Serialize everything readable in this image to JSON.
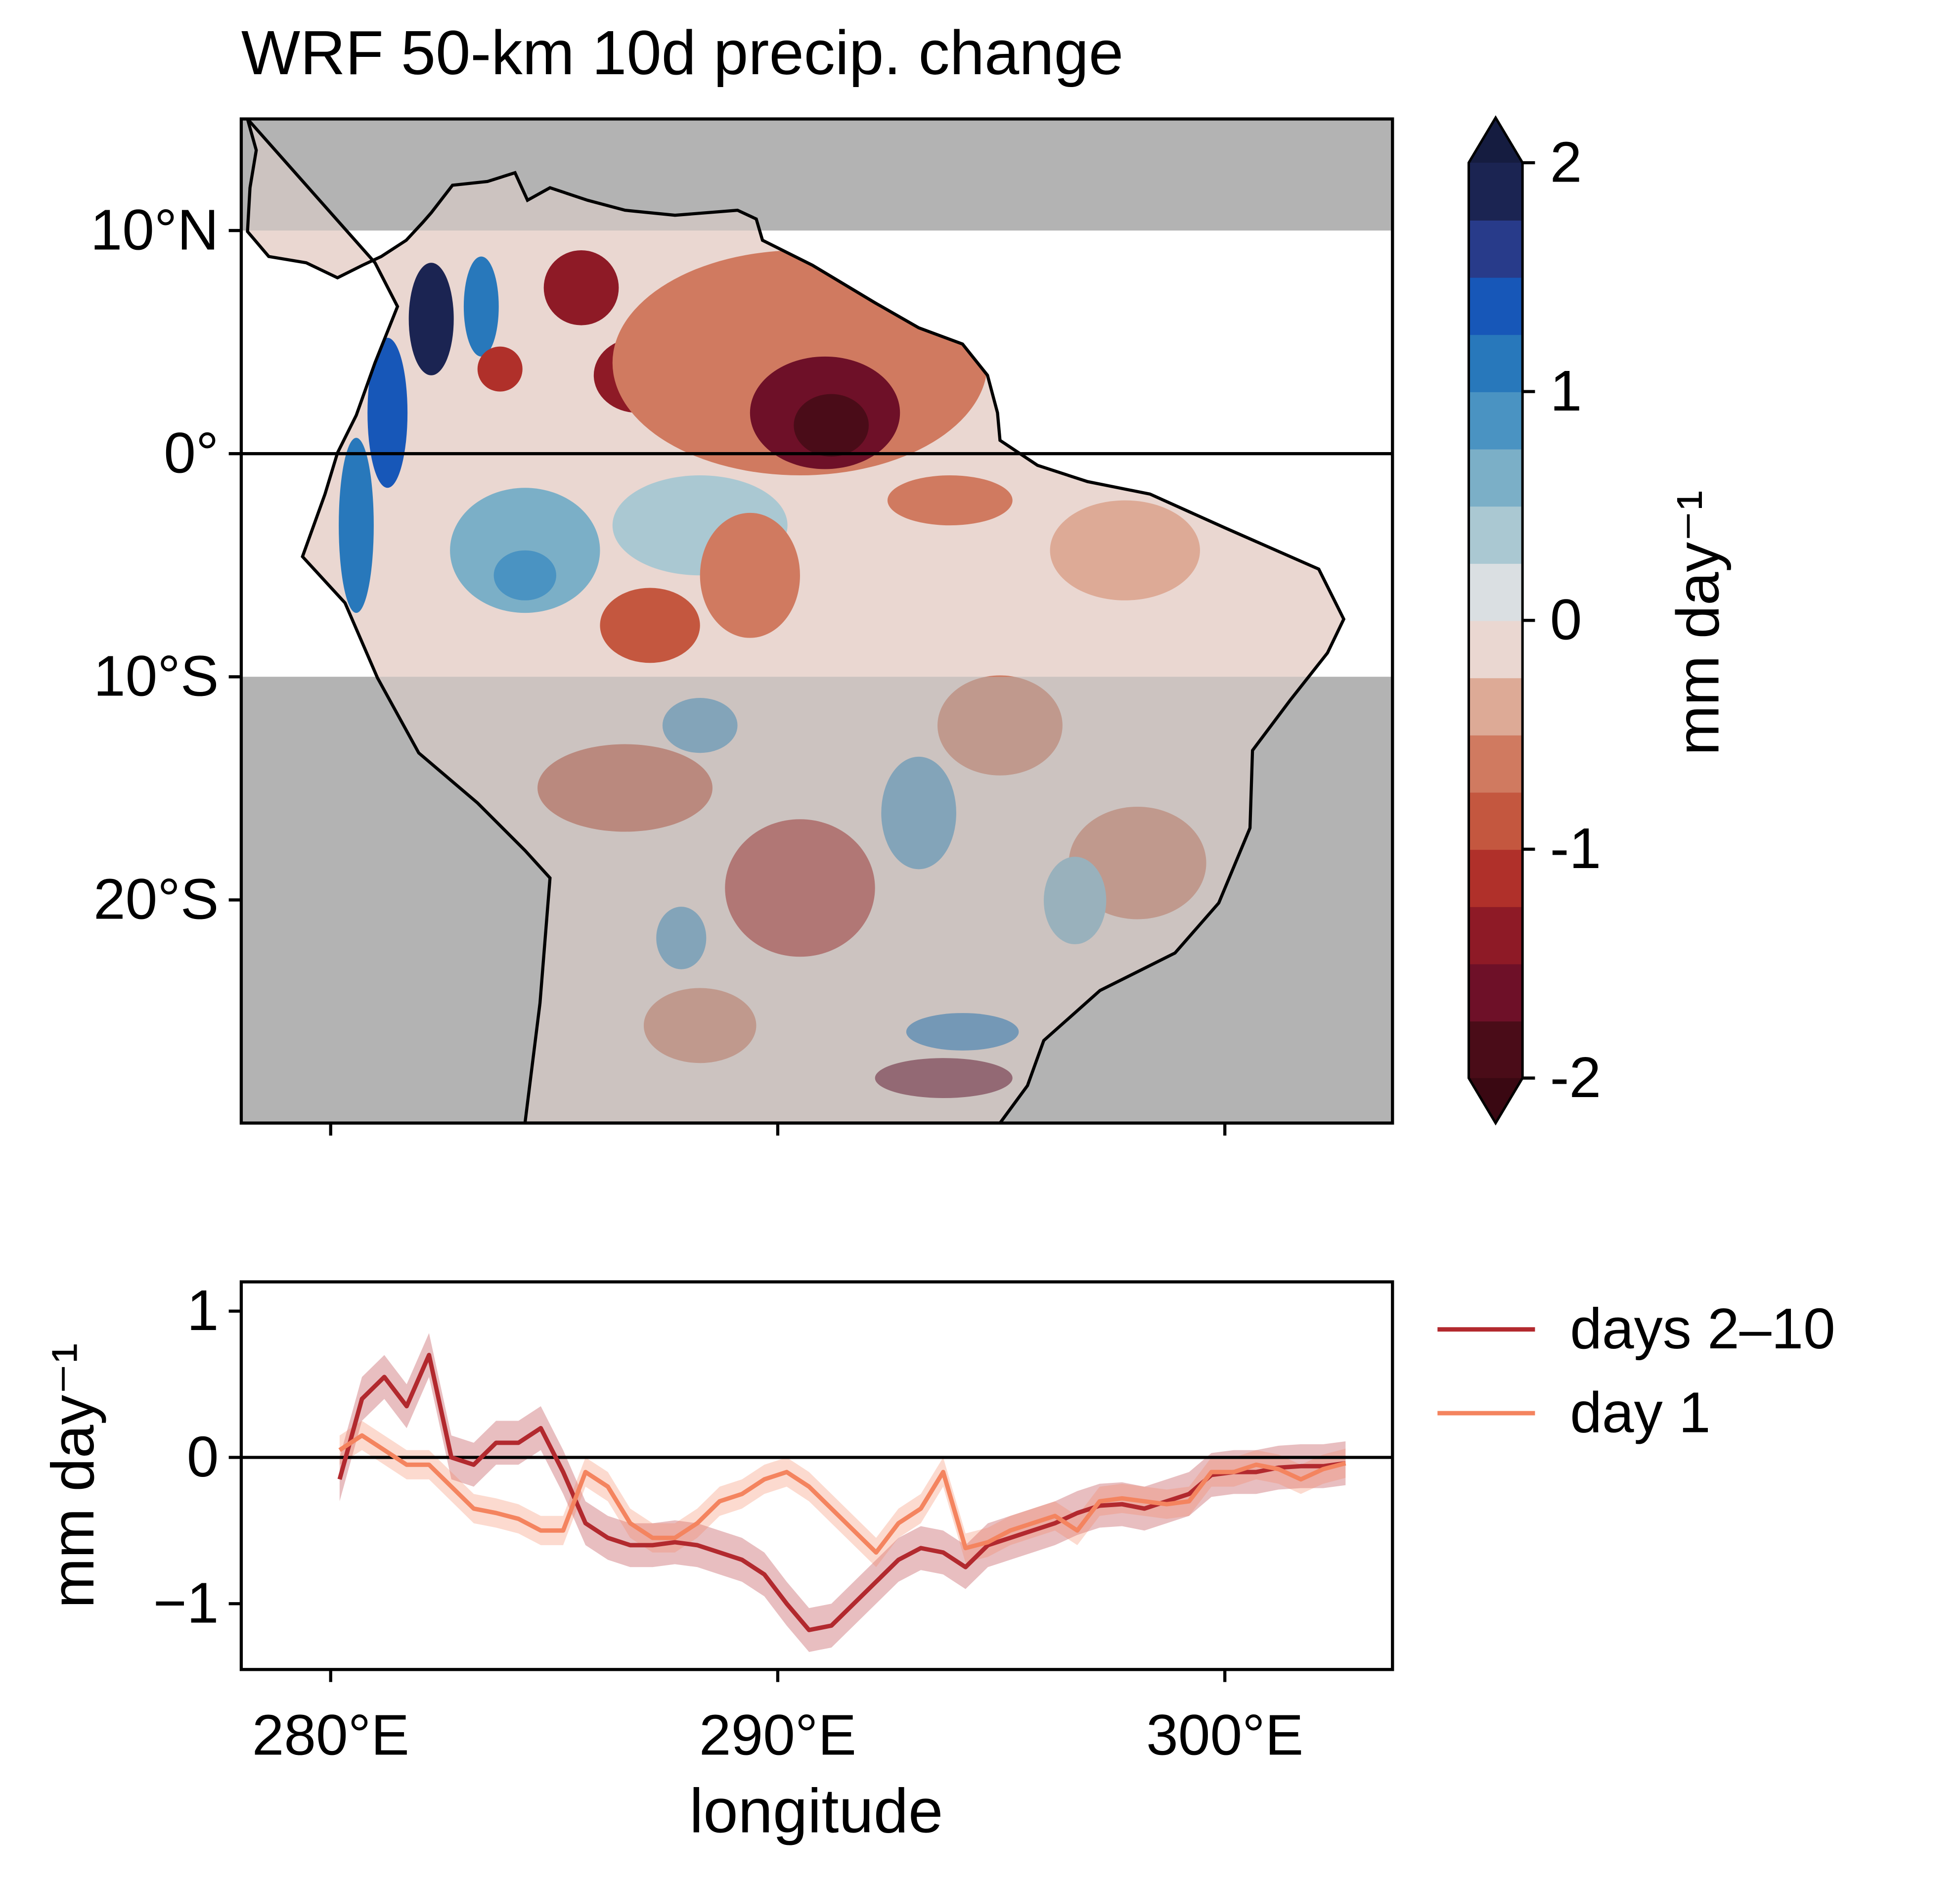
{
  "chart_data": [
    {
      "type": "map",
      "title": "WRF 50-km 10d precip. change",
      "xlim": [
        278,
        303.75
      ],
      "ylim": [
        -30,
        15
      ],
      "xticks": [
        280,
        290,
        300
      ],
      "yticks": [
        {
          "value": 10,
          "label": "10°N"
        },
        {
          "value": 0,
          "label": "0°"
        },
        {
          "value": -10,
          "label": "10°S"
        },
        {
          "value": -20,
          "label": "20°S"
        }
      ],
      "unshaded_lat": [
        -10,
        10
      ],
      "hline": 0,
      "colorbar": {
        "label": "mm day⁻¹",
        "levels": [
          -2,
          -1.75,
          -1.5,
          -1.25,
          -1,
          -0.75,
          -0.5,
          -0.25,
          0,
          0.25,
          0.5,
          0.75,
          1,
          1.25,
          1.5,
          1.75,
          2
        ],
        "ticks": [
          -2,
          -1,
          0,
          1,
          2
        ],
        "colors": [
          "#4a0c18",
          "#6e1028",
          "#8e1a26",
          "#b0302a",
          "#c4573f",
          "#d07a60",
          "#ddaa96",
          "#ead7d1",
          "#dadfe2",
          "#aac8d2",
          "#7bafc7",
          "#4a93c2",
          "#2878bb",
          "#1757b8",
          "#283b8a",
          "#1b2452"
        ],
        "extend_colors": [
          "#3a0812",
          "#151c40"
        ]
      }
    },
    {
      "type": "line",
      "xlabel": "longitude",
      "ylabel": "mm day⁻¹",
      "xlim": [
        278,
        303.75
      ],
      "ylim": [
        -1.45,
        1.2
      ],
      "xticks": [
        {
          "value": 280,
          "label": "280°E"
        },
        {
          "value": 290,
          "label": "290°E"
        },
        {
          "value": 300,
          "label": "300°E"
        }
      ],
      "yticks": [
        {
          "value": 1,
          "label": "1"
        },
        0,
        {
          "value": -1,
          "label": "−1"
        }
      ],
      "hline": 0,
      "legend": "outside right",
      "x": [
        280.2,
        280.7,
        281.2,
        281.7,
        282.2,
        282.7,
        283.2,
        283.7,
        284.2,
        284.7,
        285.2,
        285.7,
        286.2,
        286.7,
        287.2,
        287.7,
        288.2,
        288.7,
        289.2,
        289.7,
        290.2,
        290.7,
        291.2,
        291.7,
        292.2,
        292.7,
        293.2,
        293.7,
        294.2,
        294.7,
        295.2,
        295.7,
        296.2,
        296.7,
        297.2,
        297.7,
        298.2,
        298.7,
        299.2,
        299.7,
        300.2,
        300.7,
        301.2,
        301.7,
        302.2,
        302.7
      ],
      "series": [
        {
          "name": "days 2–10",
          "color": "#b2292e",
          "error": 0.15,
          "values": [
            -0.15,
            0.4,
            0.55,
            0.35,
            0.7,
            0.0,
            -0.05,
            0.1,
            0.1,
            0.2,
            -0.1,
            -0.45,
            -0.55,
            -0.6,
            -0.6,
            -0.58,
            -0.6,
            -0.65,
            -0.7,
            -0.8,
            -1.0,
            -1.18,
            -1.15,
            -1.0,
            -0.85,
            -0.7,
            -0.62,
            -0.65,
            -0.75,
            -0.6,
            -0.55,
            -0.5,
            -0.45,
            -0.38,
            -0.33,
            -0.32,
            -0.35,
            -0.3,
            -0.25,
            -0.12,
            -0.1,
            -0.1,
            -0.07,
            -0.06,
            -0.06,
            -0.04
          ]
        },
        {
          "name": "day 1",
          "color": "#f4845f",
          "error": 0.1,
          "values": [
            0.05,
            0.15,
            0.05,
            -0.05,
            -0.05,
            -0.2,
            -0.35,
            -0.38,
            -0.42,
            -0.5,
            -0.5,
            -0.1,
            -0.2,
            -0.45,
            -0.55,
            -0.55,
            -0.45,
            -0.3,
            -0.25,
            -0.15,
            -0.1,
            -0.2,
            -0.35,
            -0.5,
            -0.65,
            -0.45,
            -0.35,
            -0.1,
            -0.62,
            -0.58,
            -0.5,
            -0.45,
            -0.4,
            -0.5,
            -0.3,
            -0.28,
            -0.3,
            -0.32,
            -0.3,
            -0.1,
            -0.1,
            -0.05,
            -0.08,
            -0.15,
            -0.08,
            -0.04
          ]
        }
      ]
    }
  ]
}
